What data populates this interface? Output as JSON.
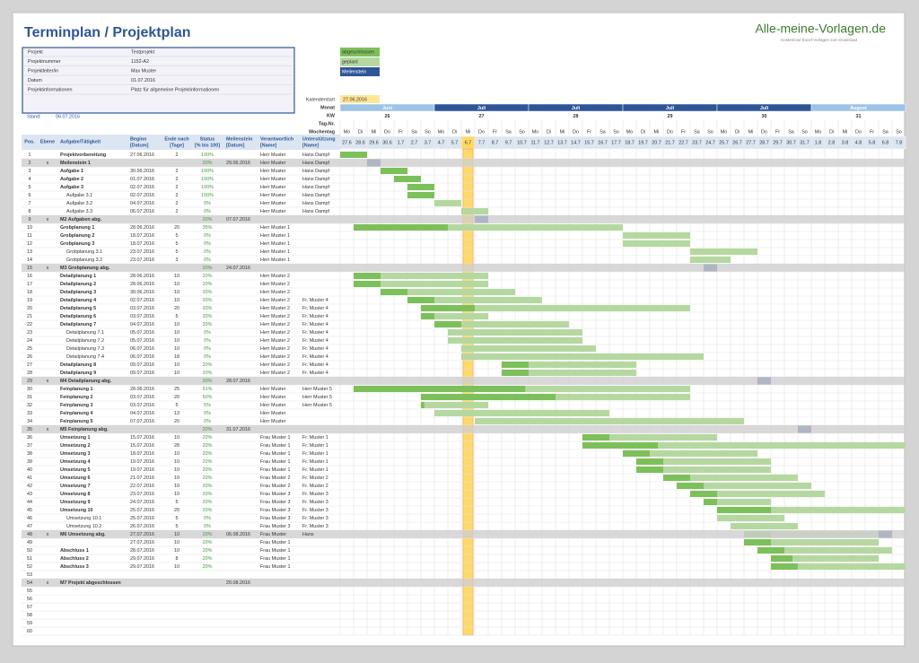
{
  "header": {
    "title": "Terminplan / Projektplan",
    "brand": "Alle-meine-Vorlagen.de",
    "brand_sub": "Kostenlose Excel-Vorlagen zum Download"
  },
  "info": [
    [
      "Projekt",
      "Testprojekt"
    ],
    [
      "Projektnummer",
      "1152-A2"
    ],
    [
      "Projektleiter/in",
      "Max Muster"
    ],
    [
      "Datum",
      "01.07.2016"
    ],
    [
      "Projektinformationen",
      "Platz für allgemeine Projektinformationen"
    ]
  ],
  "stand": {
    "label": "Stand:",
    "value": "06.07.2016"
  },
  "legend": [
    "abgeschlossen",
    "geplant",
    "Meilenstein"
  ],
  "calendar": {
    "start_label": "Kalenderstart",
    "start": "27.06.2016",
    "row_labels": [
      "Monat",
      "KW",
      "Tag-Nr.",
      "Wochentag"
    ],
    "months": [
      "Juni",
      "Juli",
      "Juli",
      "Juli",
      "Juli",
      "August"
    ],
    "weeks": [
      26,
      27,
      28,
      29,
      30,
      31
    ],
    "weekdays": [
      "Mo",
      "Di",
      "Mi",
      "Do",
      "Fr",
      "Sa",
      "So",
      "Mo",
      "Di",
      "Mi",
      "Do",
      "Fr",
      "Sa",
      "So",
      "Mo",
      "Di",
      "Mi",
      "Do",
      "Fr",
      "Sa",
      "So",
      "Mo",
      "Di",
      "Mi",
      "Do",
      "Fr",
      "Sa",
      "So",
      "Mo",
      "Di",
      "Mi",
      "Do",
      "Fr",
      "Sa",
      "So",
      "Mo",
      "Di",
      "Mi",
      "Do",
      "Fr",
      "Sa",
      "So"
    ],
    "dates": [
      "27.6",
      "28.6",
      "29.6",
      "30.6",
      "1.7",
      "2.7",
      "3.7",
      "4.7",
      "5.7",
      "6.7",
      "7.7",
      "8.7",
      "9.7",
      "10.7",
      "11.7",
      "12.7",
      "13.7",
      "14.7",
      "15.7",
      "16.7",
      "17.7",
      "18.7",
      "19.7",
      "20.7",
      "21.7",
      "22.7",
      "23.7",
      "24.7",
      "25.7",
      "26.7",
      "27.7",
      "28.7",
      "29.7",
      "30.7",
      "31.7",
      "1.8",
      "2.8",
      "3.8",
      "4.8",
      "5.8",
      "6.8",
      "7.8"
    ]
  },
  "table": {
    "columns": [
      [
        "Pos."
      ],
      [
        "Ebene"
      ],
      [
        "Aufgabe/Tätigkeit"
      ],
      [
        "Beginn",
        "[Datum]"
      ],
      [
        "Ende nach",
        "[Tage]"
      ],
      [
        "Status",
        "[% bis 100]"
      ],
      [
        "Meilenstein",
        "[Datum]"
      ],
      [
        "Verantwortlich",
        "[Name]"
      ],
      [
        "Unterstützung",
        "[Name]"
      ]
    ],
    "rows": [
      [
        1,
        null,
        "Projektvorbereitung",
        "27.06.2016",
        2,
        "100%",
        null,
        "Herr Muster",
        "Hans Dampf"
      ],
      [
        2,
        "x",
        "Meilenstein 1",
        null,
        null,
        "20%",
        "29.06.2016",
        "Herr Muster",
        "Hans Dampf"
      ],
      [
        3,
        null,
        "Aufgabe 1",
        "30.06.2016",
        2,
        "100%",
        null,
        "Herr Muster",
        "Hans Dampf"
      ],
      [
        4,
        null,
        "Aufgabe 2",
        "01.07.2016",
        2,
        "100%",
        null,
        "Herr Muster",
        "Hans Dampf"
      ],
      [
        5,
        null,
        "Aufgabe 3",
        "02.07.2016",
        2,
        "100%",
        null,
        "Herr Muster",
        "Hans Dampf"
      ],
      [
        6,
        null,
        "Aufgabe 3.1",
        "02.07.2016",
        2,
        "100%",
        null,
        "Herr Muster",
        "Hans Dampf"
      ],
      [
        7,
        null,
        "Aufgabe 3.2",
        "04.07.2016",
        2,
        "0%",
        null,
        "Herr Muster",
        "Hans Dampf"
      ],
      [
        8,
        null,
        "Aufgabe 3.3",
        "06.07.2016",
        2,
        "0%",
        null,
        "Herr Muster",
        "Hans Dampf"
      ],
      [
        9,
        "x",
        "M2 Aufgaben abg.",
        null,
        null,
        "20%",
        "07.07.2016",
        null,
        null
      ],
      [
        10,
        null,
        "Grobplanung 1",
        "28.06.2016",
        20,
        "35%",
        null,
        "Herr Muster 1",
        null
      ],
      [
        11,
        null,
        "Grobplanung 2",
        "18.07.2016",
        5,
        "0%",
        null,
        "Herr Muster 1",
        null
      ],
      [
        12,
        null,
        "Grobplanung 3",
        "18.07.2016",
        5,
        "0%",
        null,
        "Herr Muster 1",
        null
      ],
      [
        13,
        null,
        "Grobplanung 3.1",
        "23.07.2016",
        5,
        "0%",
        null,
        "Herr Muster 1",
        null
      ],
      [
        14,
        null,
        "Grobplanung 3.2",
        "23.07.2016",
        3,
        "0%",
        null,
        "Herr Muster 1",
        null
      ],
      [
        15,
        "x",
        "M3 Grobplanung abg.",
        null,
        null,
        "20%",
        "24.07.2016",
        null,
        null
      ],
      [
        16,
        null,
        "Detailplanung 1",
        "28.06.2016",
        10,
        "20%",
        null,
        "Herr Muster 2",
        null
      ],
      [
        17,
        null,
        "Detailplanung 2",
        "28.06.2016",
        10,
        "20%",
        null,
        "Herr Muster 2",
        null
      ],
      [
        18,
        null,
        "Detailplanung 3",
        "30.06.2016",
        10,
        "20%",
        null,
        "Herr Muster 2",
        null
      ],
      [
        19,
        null,
        "Detailplanung 4",
        "02.07.2016",
        10,
        "20%",
        null,
        "Herr Muster 2",
        "Fr. Muster 4"
      ],
      [
        20,
        null,
        "Detailplanung 5",
        "03.07.2016",
        20,
        "20%",
        null,
        "Herr Muster 2",
        "Fr. Muster 4"
      ],
      [
        21,
        null,
        "Detailplanung 6",
        "03.07.2016",
        5,
        "20%",
        null,
        "Herr Muster 2",
        "Fr. Muster 4"
      ],
      [
        22,
        null,
        "Detailplanung 7",
        "04.07.2016",
        10,
        "20%",
        null,
        "Herr Muster 2",
        "Fr. Muster 4"
      ],
      [
        23,
        null,
        "Detailplanung 7.1",
        "05.07.2016",
        10,
        "0%",
        null,
        "Herr Muster 2",
        "Fr. Muster 4"
      ],
      [
        24,
        null,
        "Detailplanung 7.2",
        "05.07.2016",
        10,
        "0%",
        null,
        "Herr Muster 2",
        "Fr. Muster 4"
      ],
      [
        25,
        null,
        "Detailplanung 7.3",
        "06.07.2016",
        10,
        "0%",
        null,
        "Herr Muster 2",
        "Fr. Muster 4"
      ],
      [
        26,
        null,
        "Detailplanung 7.4",
        "06.07.2016",
        18,
        "0%",
        null,
        "Herr Muster 2",
        "Fr. Muster 4"
      ],
      [
        27,
        null,
        "Detailplanung 8",
        "09.07.2016",
        10,
        "20%",
        null,
        "Herr Muster 2",
        "Fr. Muster 4"
      ],
      [
        28,
        null,
        "Detailplanung 9",
        "09.07.2016",
        10,
        "20%",
        null,
        "Herr Muster 2",
        "Fr. Muster 4"
      ],
      [
        29,
        "x",
        "M4 Detailplanung abg.",
        null,
        null,
        "20%",
        "28.07.2016",
        null,
        null
      ],
      [
        30,
        null,
        "Feinplanung 1",
        "28.06.2016",
        25,
        "51%",
        null,
        "Herr Muster",
        "Herr Muster 5"
      ],
      [
        31,
        null,
        "Feinplanung 2",
        "03.07.2016",
        20,
        "50%",
        null,
        "Herr Muster",
        "Herr Muster 5"
      ],
      [
        32,
        null,
        "Feinplanung 3",
        "03.07.2016",
        5,
        "5%",
        null,
        "Herr Muster",
        "Herr Muster 5"
      ],
      [
        33,
        null,
        "Feinplanung 4",
        "04.07.2016",
        13,
        "0%",
        null,
        "Herr Muster",
        null
      ],
      [
        34,
        null,
        "Feinplanung 5",
        "07.07.2016",
        20,
        "0%",
        null,
        "Herr Muster",
        null
      ],
      [
        35,
        "x",
        "M5 Feinplanung abg.",
        null,
        null,
        "20%",
        "31.07.2016",
        null,
        null
      ],
      [
        36,
        null,
        "Umsetzung 1",
        "15.07.2016",
        10,
        "20%",
        null,
        "Frau Muster 1",
        "Fr. Muster 1"
      ],
      [
        37,
        null,
        "Umsetzung 2",
        "15.07.2016",
        28,
        "20%",
        null,
        "Frau Muster 1",
        "Fr. Muster 1"
      ],
      [
        38,
        null,
        "Umsetzung 3",
        "18.07.2016",
        10,
        "20%",
        null,
        "Frau Muster 1",
        "Fr. Muster 1"
      ],
      [
        39,
        null,
        "Umsetzung 4",
        "19.07.2016",
        10,
        "20%",
        null,
        "Frau Muster 1",
        "Fr. Muster 1"
      ],
      [
        40,
        null,
        "Umsetzung 5",
        "19.07.2016",
        10,
        "20%",
        null,
        "Frau Muster 1",
        "Fr. Muster 1"
      ],
      [
        41,
        null,
        "Umsetzung 6",
        "21.07.2016",
        10,
        "20%",
        null,
        "Frau Muster 2",
        "Fr. Muster 2"
      ],
      [
        42,
        null,
        "Umsetzung 7",
        "22.07.2016",
        10,
        "20%",
        null,
        "Frau Muster 2",
        "Fr. Muster 2"
      ],
      [
        43,
        null,
        "Umsetzung 8",
        "23.07.2016",
        10,
        "20%",
        null,
        "Frau Muster 3",
        "Fr. Muster 3"
      ],
      [
        44,
        null,
        "Umsetzung 9",
        "24.07.2016",
        5,
        "20%",
        null,
        "Frau Muster 3",
        "Fr. Muster 3"
      ],
      [
        45,
        null,
        "Umsetzung 10",
        "25.07.2016",
        20,
        "20%",
        null,
        "Frau Muster 3",
        "Fr. Muster 3"
      ],
      [
        46,
        null,
        "Umsetzung 10.1",
        "25.07.2016",
        5,
        "0%",
        null,
        "Frau Muster 3",
        "Fr. Muster 3"
      ],
      [
        47,
        null,
        "Umsetzung 10.2",
        "26.07.2016",
        5,
        "0%",
        null,
        "Frau Muster 3",
        "Fr. Muster 3"
      ],
      [
        48,
        "x",
        "M6 Umsetzung abg.",
        "27.07.2016",
        10,
        "20%",
        "06.08.2016",
        "Frau Muster",
        "Hans"
      ],
      [
        49,
        null,
        null,
        "27.07.2016",
        10,
        "20%",
        null,
        "Frau Muster 1",
        null
      ],
      [
        50,
        null,
        "Abschluss 1",
        "28.07.2016",
        10,
        "20%",
        null,
        "Frau Muster 1",
        null
      ],
      [
        51,
        null,
        "Abschluss 2",
        "29.07.2016",
        8,
        "20%",
        null,
        "Frau Muster 1",
        null
      ],
      [
        52,
        null,
        "Abschluss 3",
        "29.07.2016",
        10,
        "20%",
        null,
        "Frau Muster 1",
        null
      ],
      [
        53,
        null,
        null,
        null,
        null,
        null,
        null,
        null,
        null
      ],
      [
        54,
        "x",
        "M7 Projekt abgeschlossen",
        null,
        null,
        null,
        "20.08.2016",
        null,
        null
      ],
      [
        55,
        null,
        null,
        null,
        null,
        null,
        null,
        null,
        null
      ],
      [
        56,
        null,
        null,
        null,
        null,
        null,
        null,
        null,
        null
      ],
      [
        57,
        null,
        null,
        null,
        null,
        null,
        null,
        null,
        null
      ],
      [
        58,
        null,
        null,
        null,
        null,
        null,
        null,
        null,
        null
      ],
      [
        59,
        null,
        null,
        null,
        null,
        null,
        null,
        null,
        null
      ],
      [
        60,
        null,
        null,
        null,
        null,
        null,
        null,
        null,
        null
      ]
    ]
  }
}
